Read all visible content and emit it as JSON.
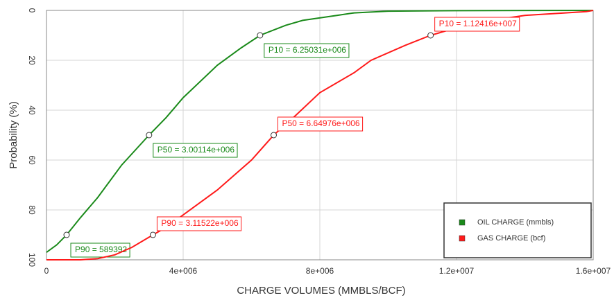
{
  "chart_data": {
    "type": "line",
    "xlabel": "CHARGE VOLUMES (MMBLS/BCF)",
    "ylabel": "Probability (%)",
    "xlim": [
      0,
      16000000
    ],
    "ylim": [
      100,
      0
    ],
    "xticks": [
      0,
      {
        "value": 4000000,
        "label": "4e+006"
      },
      {
        "value": 8000000,
        "label": "8e+006"
      },
      {
        "value": 12000000,
        "label": "1.2e+007"
      },
      {
        "value": 16000000,
        "label": "1.6e+007"
      }
    ],
    "yticks": [
      0,
      20,
      40,
      60,
      80,
      100
    ],
    "grid": true,
    "legend": "lower right",
    "series": [
      {
        "name": "OIL CHARGE (mmbls)",
        "color": "#1a8a1a",
        "x": [
          0,
          300000,
          589392,
          1000000,
          1500000,
          2200000,
          3001140,
          3500000,
          4000000,
          5000000,
          5700000,
          6250310,
          7000000,
          7500000,
          8500000,
          9000000,
          10000000,
          12000000,
          16000000
        ],
        "values": [
          97,
          94,
          90,
          83,
          75,
          62,
          50,
          43,
          35,
          22,
          15,
          10,
          6,
          4,
          2,
          1,
          0.3,
          0.1,
          0
        ],
        "annotations": [
          {
            "label": "P10 = 6.25031e+006",
            "x": 6250310,
            "y": 10
          },
          {
            "label": "P50 = 3.00114e+006",
            "x": 3001140,
            "y": 50
          },
          {
            "label": "P90 = 589392",
            "x": 589392,
            "y": 90
          }
        ]
      },
      {
        "name": "GAS CHARGE (bcf)",
        "color": "#ff1a1a",
        "x": [
          0,
          1000000,
          1500000,
          2000000,
          2500000,
          3115220,
          3500000,
          4000000,
          5000000,
          6000000,
          6649760,
          7300000,
          8000000,
          9000000,
          9500000,
          10500000,
          11241600,
          12000000,
          13000000,
          14000000,
          15800000,
          16000000
        ],
        "values": [
          100,
          100,
          99.5,
          98,
          95,
          90,
          87,
          82,
          72,
          60,
          50,
          42,
          33,
          25,
          20,
          14,
          10,
          7,
          4,
          2,
          0.5,
          0
        ],
        "annotations": [
          {
            "label": "P10 = 1.12416e+007",
            "x": 11241600,
            "y": 10
          },
          {
            "label": "P50 = 6.64976e+006",
            "x": 6649760,
            "y": 50
          },
          {
            "label": "P90 = 3.11522e+006",
            "x": 3115220,
            "y": 90
          }
        ]
      }
    ]
  }
}
